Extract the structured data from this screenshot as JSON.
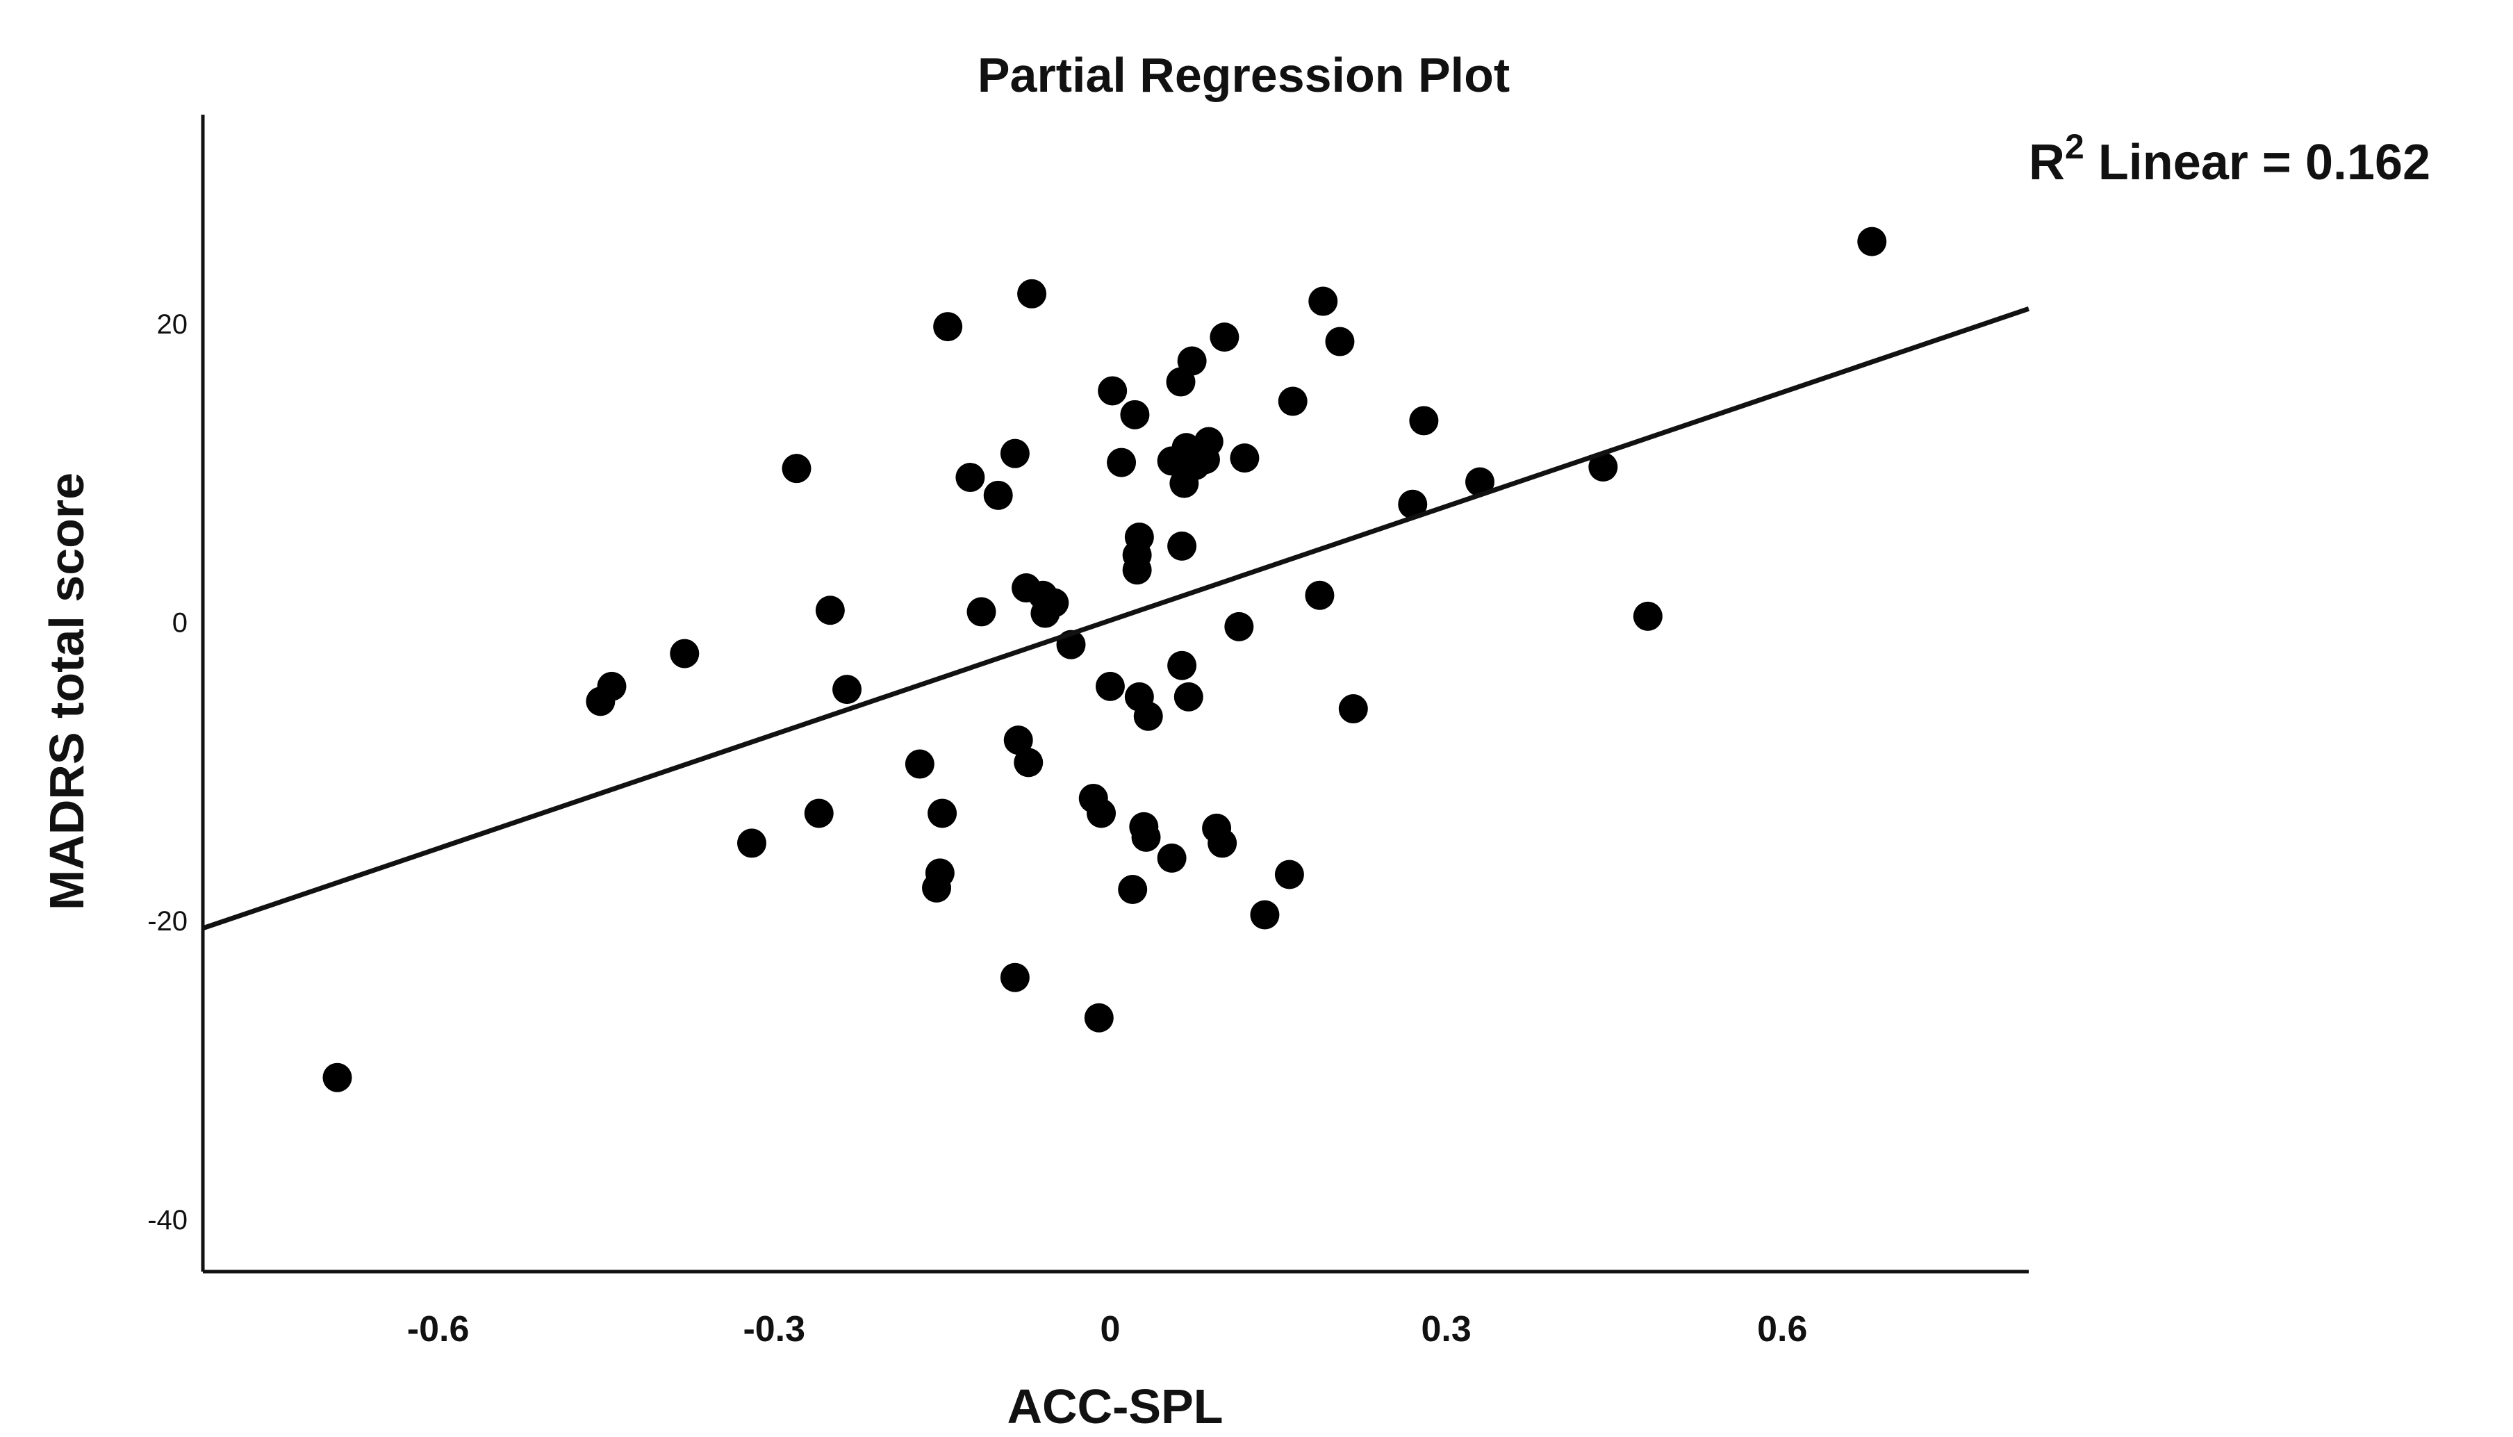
{
  "chart_data": {
    "type": "scatter",
    "title": "Partial Regression Plot",
    "xlabel": "ACC-SPL",
    "ylabel": "MADRS total score",
    "xlim": [
      -0.81,
      0.82
    ],
    "ylim": [
      -43.5,
      34
    ],
    "xticks": [
      -0.6,
      -0.3,
      0,
      0.3,
      0.6
    ],
    "xtick_labels": [
      "-0.6",
      "-0.3",
      "0",
      "0.3",
      "0.6"
    ],
    "yticks": [
      20,
      0,
      -20,
      -40
    ],
    "ytick_labels": [
      "20",
      "0",
      "-20",
      "-40"
    ],
    "grid": false,
    "annotation": {
      "base": "R",
      "sup": "2",
      "text": " Linear = 0.162"
    },
    "fit_line": {
      "x": [
        -0.81,
        0.82
      ],
      "y": [
        -20.5,
        21.0
      ]
    },
    "points": [
      {
        "x": -0.69,
        "y": -30.5
      },
      {
        "x": -0.455,
        "y": -5.3
      },
      {
        "x": -0.445,
        "y": -4.3
      },
      {
        "x": -0.38,
        "y": -2.1
      },
      {
        "x": -0.32,
        "y": -14.8
      },
      {
        "x": -0.28,
        "y": 10.3
      },
      {
        "x": -0.26,
        "y": -12.8
      },
      {
        "x": -0.25,
        "y": 0.8
      },
      {
        "x": -0.235,
        "y": -4.5
      },
      {
        "x": -0.17,
        "y": -9.5
      },
      {
        "x": -0.15,
        "y": -12.8
      },
      {
        "x": -0.152,
        "y": -16.8
      },
      {
        "x": -0.155,
        "y": -17.8
      },
      {
        "x": -0.145,
        "y": 19.8
      },
      {
        "x": -0.125,
        "y": 9.7
      },
      {
        "x": -0.115,
        "y": 0.7
      },
      {
        "x": -0.1,
        "y": 8.5
      },
      {
        "x": -0.085,
        "y": 11.3
      },
      {
        "x": -0.082,
        "y": -7.9
      },
      {
        "x": -0.085,
        "y": -23.8
      },
      {
        "x": -0.075,
        "y": 2.3
      },
      {
        "x": -0.073,
        "y": -9.4
      },
      {
        "x": -0.07,
        "y": 22.0
      },
      {
        "x": -0.06,
        "y": 1.8
      },
      {
        "x": -0.058,
        "y": 0.6
      },
      {
        "x": -0.05,
        "y": 1.3
      },
      {
        "x": -0.035,
        "y": -1.5
      },
      {
        "x": -0.015,
        "y": -11.8
      },
      {
        "x": -0.01,
        "y": -26.5
      },
      {
        "x": -0.008,
        "y": -12.8
      },
      {
        "x": 0.0,
        "y": -4.3
      },
      {
        "x": 0.002,
        "y": 15.5
      },
      {
        "x": 0.01,
        "y": 10.7
      },
      {
        "x": 0.02,
        "y": -17.9
      },
      {
        "x": 0.022,
        "y": 13.9
      },
      {
        "x": 0.024,
        "y": 3.5
      },
      {
        "x": 0.024,
        "y": 4.5
      },
      {
        "x": 0.026,
        "y": 5.7
      },
      {
        "x": 0.026,
        "y": -5.0
      },
      {
        "x": 0.03,
        "y": -13.7
      },
      {
        "x": 0.032,
        "y": -14.4
      },
      {
        "x": 0.034,
        "y": -6.3
      },
      {
        "x": 0.055,
        "y": -15.8
      },
      {
        "x": 0.055,
        "y": 10.8
      },
      {
        "x": 0.063,
        "y": 16.1
      },
      {
        "x": 0.064,
        "y": 5.1
      },
      {
        "x": 0.064,
        "y": -2.9
      },
      {
        "x": 0.066,
        "y": 9.3
      },
      {
        "x": 0.068,
        "y": 11.7
      },
      {
        "x": 0.07,
        "y": -5.0
      },
      {
        "x": 0.073,
        "y": 17.5
      },
      {
        "x": 0.076,
        "y": 10.5
      },
      {
        "x": 0.08,
        "y": 11.2
      },
      {
        "x": 0.085,
        "y": 10.9
      },
      {
        "x": 0.088,
        "y": 12.1
      },
      {
        "x": 0.095,
        "y": -13.8
      },
      {
        "x": 0.1,
        "y": -14.8
      },
      {
        "x": 0.102,
        "y": 19.1
      },
      {
        "x": 0.115,
        "y": -0.3
      },
      {
        "x": 0.12,
        "y": 11.0
      },
      {
        "x": 0.138,
        "y": -19.6
      },
      {
        "x": 0.16,
        "y": -16.9
      },
      {
        "x": 0.163,
        "y": 14.8
      },
      {
        "x": 0.187,
        "y": 1.8
      },
      {
        "x": 0.19,
        "y": 21.5
      },
      {
        "x": 0.205,
        "y": 18.8
      },
      {
        "x": 0.217,
        "y": -5.8
      },
      {
        "x": 0.27,
        "y": 7.9
      },
      {
        "x": 0.28,
        "y": 13.5
      },
      {
        "x": 0.33,
        "y": 9.4
      },
      {
        "x": 0.44,
        "y": 10.4
      },
      {
        "x": 0.48,
        "y": 0.4
      },
      {
        "x": 0.68,
        "y": 25.5
      }
    ]
  }
}
